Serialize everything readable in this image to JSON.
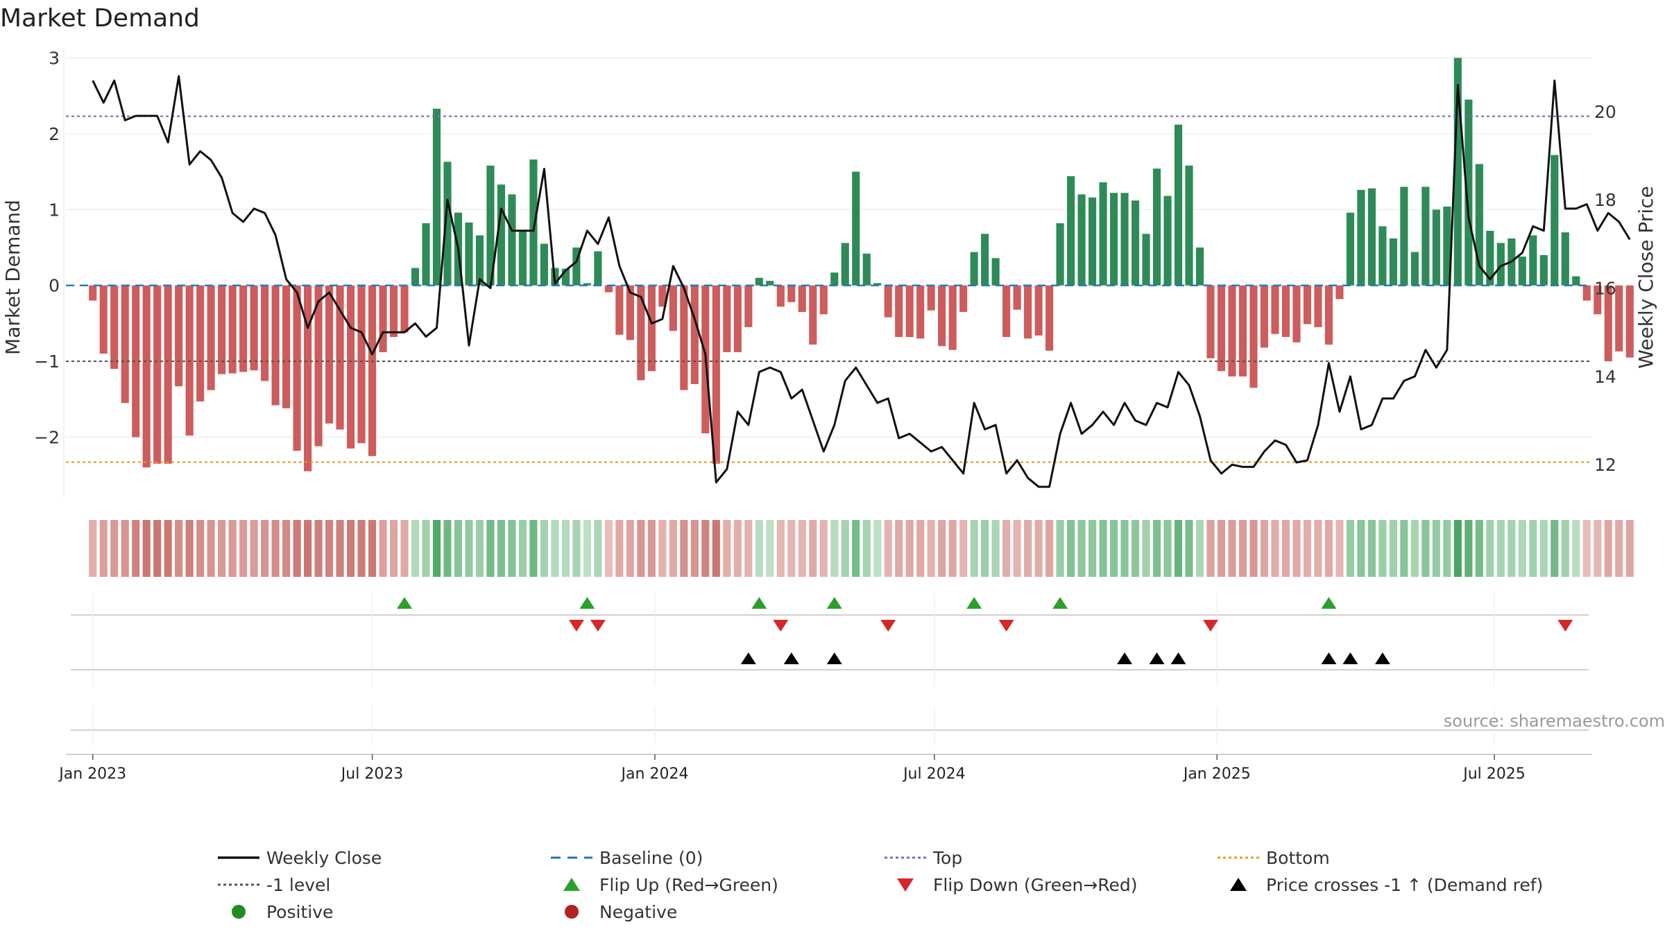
{
  "chart_data": {
    "type": "bar",
    "title": "Market Demand",
    "ylabel": "Market Demand",
    "y2label": "Weekly Close Price",
    "ylim": [
      -2.8,
      3.05
    ],
    "y2lim": [
      11.25,
      21.3
    ],
    "yticks": [
      -2,
      -1,
      0,
      1,
      2,
      3
    ],
    "y2ticks": [
      12,
      14,
      16,
      18,
      20
    ],
    "xrange_weeks": [
      -2.5,
      139.5
    ],
    "xticks": [
      {
        "label": "Jan 2023",
        "week": 0
      },
      {
        "label": "Jul 2023",
        "week": 26
      },
      {
        "label": "Jan 2024",
        "week": 52.3
      },
      {
        "label": "Jul 2024",
        "week": 78.3
      },
      {
        "label": "Jan 2025",
        "week": 104.6
      },
      {
        "label": "Jul 2025",
        "week": 130.4
      }
    ],
    "reference_lines": {
      "top": 2.23,
      "bottom": -2.33,
      "minus_one": -1,
      "baseline": 0
    },
    "demand": [
      -0.2,
      -0.9,
      -1.1,
      -1.55,
      -2.0,
      -2.4,
      -2.35,
      -2.35,
      -1.33,
      -1.98,
      -1.53,
      -1.38,
      -1.17,
      -1.16,
      -1.14,
      -1.12,
      -1.26,
      -1.58,
      -1.62,
      -2.18,
      -2.45,
      -2.12,
      -1.82,
      -1.9,
      -2.15,
      -2.08,
      -2.25,
      -0.88,
      -0.68,
      -0.62,
      0.23,
      0.82,
      2.33,
      1.63,
      0.96,
      0.83,
      0.66,
      1.58,
      1.33,
      1.2,
      0.72,
      1.66,
      0.55,
      0.23,
      0.22,
      0.5,
      0.03,
      0.45,
      -0.09,
      -0.65,
      -0.72,
      -1.25,
      -1.13,
      -0.28,
      -0.6,
      -1.38,
      -1.3,
      -1.95,
      -2.35,
      -0.88,
      -0.88,
      -0.55,
      0.1,
      0.06,
      -0.28,
      -0.22,
      -0.35,
      -0.78,
      -0.38,
      0.17,
      0.56,
      1.5,
      0.42,
      0.03,
      -0.42,
      -0.68,
      -0.68,
      -0.7,
      -0.33,
      -0.8,
      -0.85,
      -0.35,
      0.44,
      0.68,
      0.36,
      -0.68,
      -0.32,
      -0.7,
      -0.66,
      -0.86,
      0.82,
      1.44,
      1.2,
      1.16,
      1.36,
      1.22,
      1.22,
      1.12,
      0.68,
      1.54,
      1.18,
      2.12,
      1.58,
      0.5,
      -0.96,
      -1.13,
      -1.2,
      -1.2,
      -1.35,
      -0.82,
      -0.64,
      -0.68,
      -0.75,
      -0.51,
      -0.55,
      -0.78,
      -0.18,
      0.96,
      1.26,
      1.28,
      0.78,
      0.62,
      1.3,
      0.44,
      1.3,
      1.0,
      1.04,
      3.0,
      2.45,
      1.6,
      0.72,
      0.56,
      0.62,
      0.38,
      0.66,
      0.4,
      1.72,
      0.7,
      0.12,
      -0.2,
      -0.38,
      -1.0,
      -0.87,
      -0.95
    ],
    "close": [
      20.7,
      20.2,
      20.7,
      19.8,
      19.9,
      19.9,
      19.9,
      19.3,
      20.8,
      18.8,
      19.1,
      18.9,
      18.5,
      17.7,
      17.5,
      17.8,
      17.7,
      17.2,
      16.2,
      15.9,
      15.1,
      15.7,
      15.9,
      15.5,
      15.1,
      15.0,
      14.5,
      15.0,
      15.0,
      15.0,
      15.2,
      14.9,
      15.1,
      18.0,
      16.9,
      14.7,
      16.2,
      16.0,
      17.8,
      17.3,
      17.3,
      17.3,
      18.7,
      16.1,
      16.4,
      16.6,
      17.3,
      17.0,
      17.6,
      16.5,
      15.9,
      15.8,
      15.2,
      15.3,
      16.5,
      16.0,
      15.3,
      14.5,
      11.6,
      11.9,
      13.2,
      12.9,
      14.1,
      14.2,
      14.1,
      13.5,
      13.7,
      13.0,
      12.3,
      12.9,
      13.9,
      14.2,
      13.8,
      13.4,
      13.5,
      12.6,
      12.7,
      12.5,
      12.3,
      12.4,
      12.1,
      11.8,
      13.4,
      12.8,
      12.9,
      11.8,
      12.1,
      11.7,
      11.5,
      11.5,
      12.7,
      13.4,
      12.7,
      12.9,
      13.2,
      12.9,
      13.4,
      13.0,
      12.9,
      13.4,
      13.3,
      14.1,
      13.8,
      13.1,
      12.1,
      11.8,
      12.0,
      11.95,
      11.95,
      12.3,
      12.55,
      12.45,
      12.05,
      12.1,
      12.9,
      14.3,
      13.2,
      14.0,
      12.8,
      12.9,
      13.5,
      13.5,
      13.9,
      14.0,
      14.6,
      14.2,
      14.6,
      20.6,
      17.6,
      16.5,
      16.2,
      16.5,
      16.6,
      16.8,
      17.4,
      17.3,
      20.7,
      17.8,
      17.8,
      17.9,
      17.3,
      17.7,
      17.5,
      17.1
    ],
    "strip_intensity": [
      0.38,
      0.52,
      0.58,
      0.62,
      0.78,
      0.9,
      0.9,
      0.88,
      0.68,
      0.82,
      0.68,
      0.62,
      0.58,
      0.58,
      0.55,
      0.55,
      0.62,
      0.7,
      0.72,
      0.85,
      0.9,
      0.82,
      0.78,
      0.8,
      0.85,
      0.85,
      0.88,
      0.5,
      0.45,
      0.42,
      0.3,
      0.42,
      0.95,
      0.75,
      0.58,
      0.52,
      0.45,
      0.72,
      0.65,
      0.6,
      0.45,
      0.75,
      0.4,
      0.3,
      0.3,
      0.38,
      0.22,
      0.35,
      0.25,
      0.42,
      0.45,
      0.6,
      0.58,
      0.35,
      0.42,
      0.65,
      0.62,
      0.78,
      0.9,
      0.38,
      0.38,
      0.35,
      0.25,
      0.22,
      0.3,
      0.3,
      0.32,
      0.42,
      0.33,
      0.27,
      0.4,
      0.7,
      0.38,
      0.22,
      0.32,
      0.42,
      0.42,
      0.42,
      0.35,
      0.45,
      0.45,
      0.32,
      0.38,
      0.45,
      0.35,
      0.38,
      0.32,
      0.4,
      0.4,
      0.45,
      0.48,
      0.62,
      0.55,
      0.55,
      0.6,
      0.58,
      0.58,
      0.55,
      0.42,
      0.65,
      0.55,
      0.8,
      0.68,
      0.35,
      0.5,
      0.55,
      0.55,
      0.55,
      0.6,
      0.45,
      0.4,
      0.42,
      0.42,
      0.38,
      0.38,
      0.42,
      0.3,
      0.48,
      0.58,
      0.58,
      0.45,
      0.42,
      0.58,
      0.38,
      0.58,
      0.5,
      0.5,
      1.0,
      0.85,
      0.7,
      0.42,
      0.38,
      0.4,
      0.33,
      0.42,
      0.35,
      0.72,
      0.42,
      0.25,
      0.25,
      0.3,
      0.45,
      0.42,
      0.45
    ],
    "flip_up_weeks": [
      29,
      46,
      62,
      69,
      82,
      90,
      115
    ],
    "flip_down_weeks": [
      45,
      47,
      64,
      74,
      85,
      104,
      137
    ],
    "price_cross_weeks": [
      61,
      65,
      69,
      96,
      99,
      101,
      115,
      117,
      120
    ],
    "source_text": "source: sharemaestro.com",
    "colors": {
      "positive": "#2e8b57",
      "negative": "#cd5c5c",
      "close": "#111111",
      "baseline": "#1f77b4",
      "top": "#7b68c8",
      "bottom": "#e09a2a",
      "minus_one": "#555555",
      "flip_up": "#2ca02c",
      "flip_down": "#d62728",
      "cross": "#000000"
    },
    "legend": [
      {
        "label": "Weekly Close",
        "kind": "line",
        "color": "#111111"
      },
      {
        "label": "Baseline (0)",
        "kind": "dash",
        "color": "#1f77b4"
      },
      {
        "label": "Top",
        "kind": "dot",
        "color": "#7b68c8"
      },
      {
        "label": "Bottom",
        "kind": "dot",
        "color": "#e09a2a"
      },
      {
        "label": "-1 level",
        "kind": "dot",
        "color": "#555555"
      },
      {
        "label": "Flip Up (Red→Green)",
        "kind": "tri-up",
        "color": "#2ca02c"
      },
      {
        "label": "Flip Down (Green→Red)",
        "kind": "tri-down",
        "color": "#d62728"
      },
      {
        "label": "Price crosses -1 ↑ (Demand ref)",
        "kind": "tri-up",
        "color": "#000000"
      },
      {
        "label": "Positive",
        "kind": "circle",
        "color": "#228b22"
      },
      {
        "label": "Negative",
        "kind": "circle",
        "color": "#b22222"
      }
    ]
  }
}
